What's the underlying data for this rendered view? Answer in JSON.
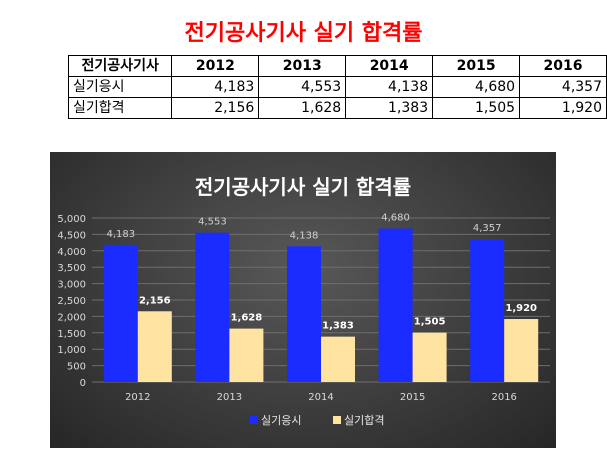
{
  "document": {
    "title": "전기공사기사 실기 합격률"
  },
  "table": {
    "header_label": "전기공사기사",
    "years": [
      "2012",
      "2013",
      "2014",
      "2015",
      "2016"
    ],
    "rows": [
      {
        "label": "실기응시",
        "values": [
          "4,183",
          "4,553",
          "4,138",
          "4,680",
          "4,357"
        ]
      },
      {
        "label": "실기합격",
        "values": [
          "2,156",
          "1,628",
          "1,383",
          "1,505",
          "1,920"
        ]
      }
    ]
  },
  "chart_data": {
    "type": "bar",
    "title": "전기공사기사 실기 합격률",
    "categories": [
      "2012",
      "2013",
      "2014",
      "2015",
      "2016"
    ],
    "series": [
      {
        "name": "실기응시",
        "values": [
          4183,
          4553,
          4138,
          4680,
          4357
        ],
        "color": "#1a2cff",
        "label_color": "#d0d0d0",
        "label_bold": false
      },
      {
        "name": "실기합격",
        "values": [
          2156,
          1628,
          1383,
          1505,
          1920
        ],
        "color": "#ffe3a0",
        "label_color": "#ffffff",
        "label_bold": true
      }
    ],
    "ylim": [
      0,
      5000
    ],
    "yticks": [
      0,
      500,
      1000,
      1500,
      2000,
      2500,
      3000,
      3500,
      4000,
      4500,
      5000
    ],
    "xlabel": "",
    "ylabel": "",
    "grid": true,
    "legend": "bottom",
    "background": "#3a3a3a"
  }
}
